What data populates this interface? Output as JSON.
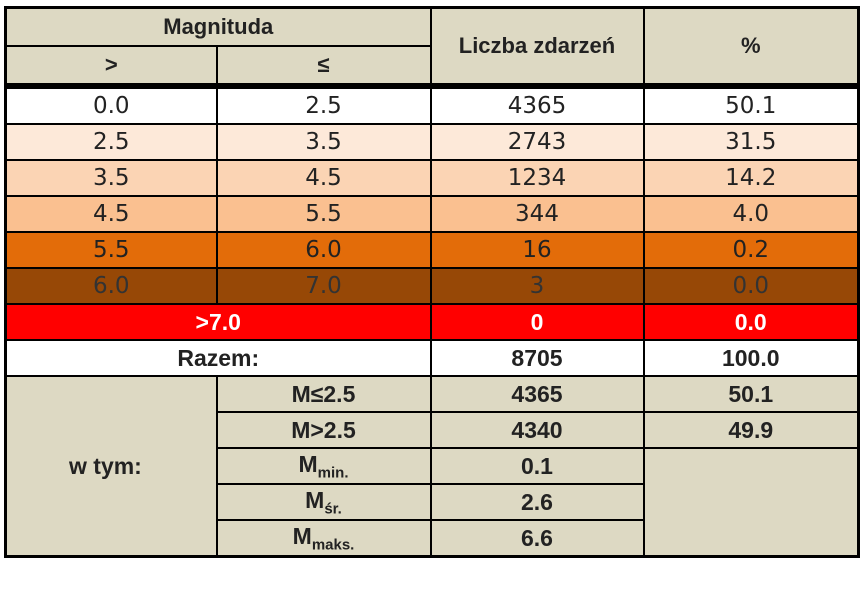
{
  "header": {
    "magnitude": "Magnituda",
    "gt": ">",
    "le": "≤",
    "count": "Liczba zdarzeń",
    "percent": "%"
  },
  "rows": [
    [
      "0.0",
      "2.5",
      "4365",
      "50.1"
    ],
    [
      "2.5",
      "3.5",
      "2743",
      "31.5"
    ],
    [
      "3.5",
      "4.5",
      "1234",
      "14.2"
    ],
    [
      "4.5",
      "5.5",
      "344",
      "4.0"
    ],
    [
      "5.5",
      "6.0",
      "16",
      "0.2"
    ],
    [
      "6.0",
      "7.0",
      "3",
      "0.0"
    ]
  ],
  "above7": {
    "label": ">7.0",
    "count": "0",
    "percent": "0.0"
  },
  "total": {
    "label": "Razem:",
    "count": "8705",
    "percent": "100.0"
  },
  "breakdown": {
    "label": "w tym:",
    "items": [
      {
        "label": "M≤2.5",
        "value": "4365",
        "percent": "50.1"
      },
      {
        "label": "M>2.5",
        "value": "4340",
        "percent": "49.9"
      },
      {
        "label": "M",
        "sub": "min.",
        "value": "0.1"
      },
      {
        "label": "M",
        "sub": "śr.",
        "value": "2.6"
      },
      {
        "label": "M",
        "sub": "maks.",
        "value": "6.6"
      }
    ]
  }
}
